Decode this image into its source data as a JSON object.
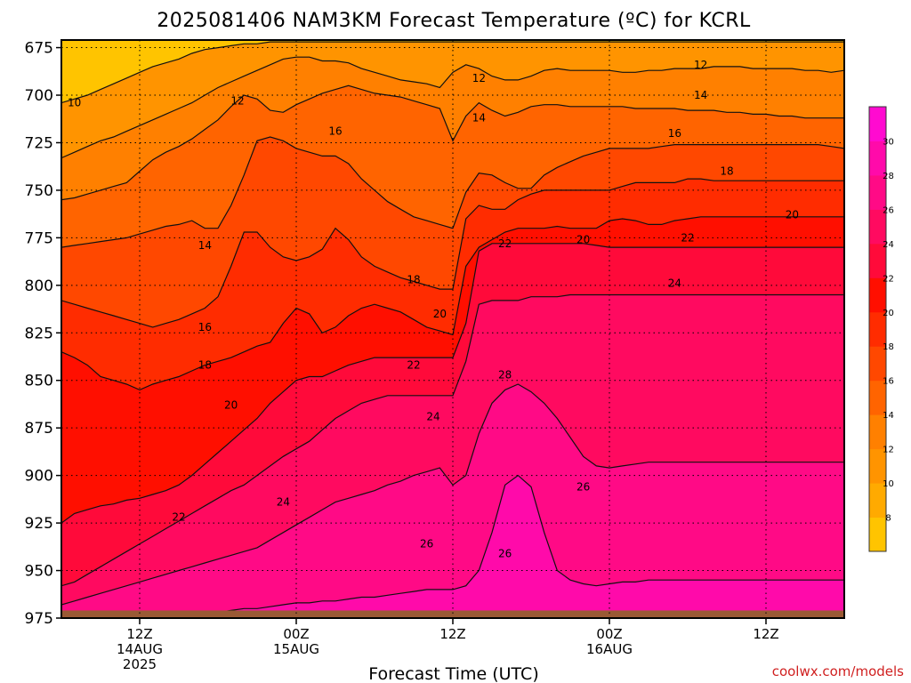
{
  "chart_data": {
    "type": "heatmap",
    "title": "2025081406 NAM3KM Forecast Temperature (ºC) for KCRL",
    "xlabel": "Forecast Time (UTC)",
    "ylabel": "",
    "y_axis": {
      "ticks": [
        675,
        700,
        725,
        750,
        775,
        800,
        825,
        850,
        875,
        900,
        925,
        950,
        975
      ],
      "range": [
        975,
        671
      ],
      "unit": "hPa"
    },
    "x_axis": {
      "range_hours": [
        0,
        60
      ],
      "ticks": [
        {
          "hour": 6,
          "lines": [
            "12Z",
            "14AUG",
            "2025"
          ]
        },
        {
          "hour": 18,
          "lines": [
            "00Z",
            "15AUG"
          ]
        },
        {
          "hour": 30,
          "lines": [
            "12Z"
          ]
        },
        {
          "hour": 42,
          "lines": [
            "00Z",
            "16AUG"
          ]
        },
        {
          "hour": 54,
          "lines": [
            "12Z"
          ]
        }
      ]
    },
    "colorbar": {
      "levels": [
        6,
        8,
        10,
        12,
        14,
        16,
        18,
        20,
        22,
        24,
        26,
        28,
        30,
        32
      ],
      "labels": [
        8,
        10,
        12,
        14,
        16,
        18,
        20,
        22,
        24,
        26,
        28,
        30
      ],
      "colors": [
        "#ffc400",
        "#ffaa00",
        "#ff9400",
        "#ff8000",
        "#ff6400",
        "#ff4800",
        "#ff2c00",
        "#ff0f00",
        "#ff0a3a",
        "#ff0a60",
        "#ff0a86",
        "#ff0aaa",
        "#ff0ad0"
      ]
    },
    "grid": true,
    "time_hours": [
      0,
      1,
      2,
      3,
      4,
      5,
      6,
      7,
      8,
      9,
      10,
      11,
      12,
      13,
      14,
      15,
      16,
      17,
      18,
      19,
      20,
      21,
      22,
      23,
      24,
      25,
      26,
      27,
      28,
      29,
      30,
      31,
      32,
      33,
      34,
      35,
      36,
      37,
      38,
      39,
      40,
      41,
      42,
      43,
      44,
      45,
      46,
      47,
      48,
      49,
      50,
      51,
      52,
      53,
      54,
      55,
      56,
      57,
      58,
      59,
      60
    ],
    "contours": [
      {
        "value": 10,
        "pressure": [
          704,
          702,
          700,
          697,
          694,
          691,
          688,
          685,
          683,
          681,
          678,
          676,
          675,
          674,
          673,
          673,
          672,
          672,
          672,
          672,
          672,
          672,
          672,
          672,
          672,
          672,
          672,
          672,
          672,
          672,
          672,
          672,
          672,
          672,
          672,
          672,
          672,
          672,
          672,
          672,
          672,
          672,
          672,
          672,
          672,
          672,
          672,
          672,
          672,
          672,
          672,
          672,
          672,
          672,
          672,
          672,
          672,
          672,
          672,
          672,
          672
        ]
      },
      {
        "value": 12,
        "pressure": [
          733,
          730,
          727,
          724,
          722,
          719,
          716,
          713,
          710,
          707,
          704,
          700,
          696,
          693,
          690,
          687,
          684,
          681,
          680,
          680,
          682,
          682,
          683,
          686,
          688,
          690,
          692,
          693,
          694,
          696,
          688,
          684,
          686,
          690,
          692,
          692,
          690,
          687,
          686,
          687,
          687,
          687,
          687,
          688,
          688,
          687,
          687,
          686,
          686,
          686,
          685,
          685,
          685,
          686,
          686,
          686,
          686,
          687,
          687,
          688,
          687
        ]
      },
      {
        "value": 14,
        "pressure": [
          755,
          754,
          752,
          750,
          748,
          746,
          740,
          734,
          730,
          727,
          723,
          718,
          713,
          706,
          700,
          702,
          708,
          709,
          705,
          702,
          699,
          697,
          695,
          697,
          699,
          700,
          701,
          703,
          705,
          707,
          724,
          711,
          704,
          708,
          711,
          709,
          706,
          705,
          705,
          706,
          706,
          706,
          706,
          706,
          707,
          707,
          707,
          707,
          708,
          708,
          708,
          709,
          709,
          710,
          710,
          711,
          711,
          712,
          712,
          712,
          712
        ]
      },
      {
        "value": 16,
        "pressure": [
          780,
          779,
          778,
          777,
          776,
          775,
          773,
          771,
          769,
          768,
          766,
          770,
          770,
          758,
          742,
          724,
          722,
          724,
          728,
          730,
          732,
          732,
          736,
          744,
          750,
          756,
          760,
          764,
          766,
          768,
          770,
          751,
          741,
          742,
          746,
          749,
          749,
          742,
          738,
          735,
          732,
          730,
          728,
          728,
          728,
          728,
          727,
          726,
          726,
          726,
          726,
          726,
          726,
          726,
          726,
          726,
          726,
          726,
          726,
          727,
          728
        ]
      },
      {
        "value": 18,
        "pressure": [
          808,
          810,
          812,
          814,
          816,
          818,
          820,
          822,
          820,
          818,
          815,
          812,
          806,
          790,
          772,
          772,
          780,
          785,
          787,
          785,
          781,
          770,
          776,
          785,
          790,
          793,
          796,
          798,
          800,
          802,
          802,
          765,
          758,
          760,
          760,
          755,
          752,
          750,
          750,
          750,
          750,
          750,
          750,
          748,
          746,
          746,
          746,
          746,
          744,
          744,
          745,
          745,
          745,
          745,
          745,
          745,
          745,
          745,
          745,
          745,
          745
        ]
      },
      {
        "value": 20,
        "pressure": [
          835,
          838,
          842,
          848,
          850,
          852,
          855,
          852,
          850,
          848,
          845,
          842,
          840,
          838,
          835,
          832,
          830,
          820,
          812,
          815,
          825,
          822,
          816,
          812,
          810,
          812,
          814,
          818,
          822,
          824,
          826,
          790,
          780,
          776,
          772,
          770,
          770,
          770,
          769,
          770,
          770,
          770,
          766,
          765,
          766,
          768,
          768,
          766,
          765,
          764,
          764,
          764,
          764,
          764,
          764,
          764,
          764,
          764,
          764,
          764,
          764
        ]
      },
      {
        "value": 22,
        "pressure": [
          925,
          920,
          918,
          916,
          915,
          913,
          912,
          910,
          908,
          905,
          900,
          894,
          888,
          882,
          876,
          870,
          862,
          856,
          850,
          848,
          848,
          845,
          842,
          840,
          838,
          838,
          838,
          838,
          838,
          838,
          838,
          820,
          782,
          778,
          778,
          778,
          778,
          778,
          778,
          778,
          778,
          779,
          780,
          780,
          780,
          780,
          780,
          780,
          780,
          780,
          780,
          780,
          780,
          780,
          780,
          780,
          780,
          780,
          780,
          780,
          780
        ]
      },
      {
        "value": 24,
        "pressure": [
          958,
          956,
          952,
          948,
          944,
          940,
          936,
          932,
          928,
          924,
          920,
          916,
          912,
          908,
          905,
          900,
          895,
          890,
          886,
          882,
          876,
          870,
          866,
          862,
          860,
          858,
          858,
          858,
          858,
          858,
          858,
          840,
          810,
          808,
          808,
          808,
          806,
          806,
          806,
          805,
          805,
          805,
          805,
          805,
          805,
          805,
          805,
          805,
          805,
          805,
          805,
          805,
          805,
          805,
          805,
          805,
          805,
          805,
          805,
          805,
          805
        ]
      },
      {
        "value": 26,
        "pressure": [
          968,
          966,
          964,
          962,
          960,
          958,
          956,
          954,
          952,
          950,
          948,
          946,
          944,
          942,
          940,
          938,
          934,
          930,
          926,
          922,
          918,
          914,
          912,
          910,
          908,
          905,
          903,
          900,
          898,
          896,
          905,
          900,
          878,
          862,
          855,
          852,
          856,
          862,
          870,
          880,
          890,
          895,
          896,
          895,
          894,
          893,
          893,
          893,
          893,
          893,
          893,
          893,
          893,
          893,
          893,
          893,
          893,
          893,
          893,
          893,
          893
        ]
      },
      {
        "value": 28,
        "pressure": [
          974,
          974,
          974,
          974,
          974,
          974,
          974,
          974,
          974,
          973,
          972,
          972,
          972,
          971,
          970,
          970,
          969,
          968,
          967,
          967,
          966,
          966,
          965,
          964,
          964,
          963,
          962,
          961,
          960,
          960,
          960,
          958,
          950,
          930,
          905,
          900,
          906,
          930,
          950,
          955,
          957,
          958,
          957,
          956,
          956,
          955,
          955,
          955,
          955,
          955,
          955,
          955,
          955,
          955,
          955,
          955,
          955,
          955,
          955,
          955,
          955
        ]
      }
    ],
    "contour_labels": [
      {
        "value": 10,
        "hour": 1,
        "pressure": 704
      },
      {
        "value": 12,
        "hour": 13.5,
        "pressure": 703
      },
      {
        "value": 12,
        "hour": 32,
        "pressure": 691
      },
      {
        "value": 12,
        "hour": 49,
        "pressure": 684
      },
      {
        "value": 14,
        "hour": 11,
        "pressure": 779
      },
      {
        "value": 14,
        "hour": 32,
        "pressure": 712
      },
      {
        "value": 14,
        "hour": 49,
        "pressure": 700
      },
      {
        "value": 16,
        "hour": 21,
        "pressure": 719
      },
      {
        "value": 16,
        "hour": 11,
        "pressure": 822
      },
      {
        "value": 16,
        "hour": 47,
        "pressure": 720
      },
      {
        "value": 18,
        "hour": 11,
        "pressure": 842
      },
      {
        "value": 18,
        "hour": 27,
        "pressure": 797
      },
      {
        "value": 18,
        "hour": 51,
        "pressure": 740
      },
      {
        "value": 20,
        "hour": 13,
        "pressure": 863
      },
      {
        "value": 20,
        "hour": 29,
        "pressure": 815
      },
      {
        "value": 20,
        "hour": 40,
        "pressure": 776
      },
      {
        "value": 20,
        "hour": 56,
        "pressure": 763
      },
      {
        "value": 22,
        "hour": 9,
        "pressure": 922
      },
      {
        "value": 22,
        "hour": 27,
        "pressure": 842
      },
      {
        "value": 22,
        "hour": 34,
        "pressure": 778
      },
      {
        "value": 22,
        "hour": 48,
        "pressure": 775
      },
      {
        "value": 24,
        "hour": 17,
        "pressure": 914
      },
      {
        "value": 24,
        "hour": 28.5,
        "pressure": 869
      },
      {
        "value": 24,
        "hour": 47,
        "pressure": 799
      },
      {
        "value": 26,
        "hour": 28,
        "pressure": 936
      },
      {
        "value": 26,
        "hour": 34,
        "pressure": 941
      },
      {
        "value": 26,
        "hour": 40,
        "pressure": 906
      },
      {
        "value": 28,
        "hour": 34,
        "pressure": 847
      }
    ],
    "ground_pressure": 971
  },
  "credit": "coolwx.com/models"
}
